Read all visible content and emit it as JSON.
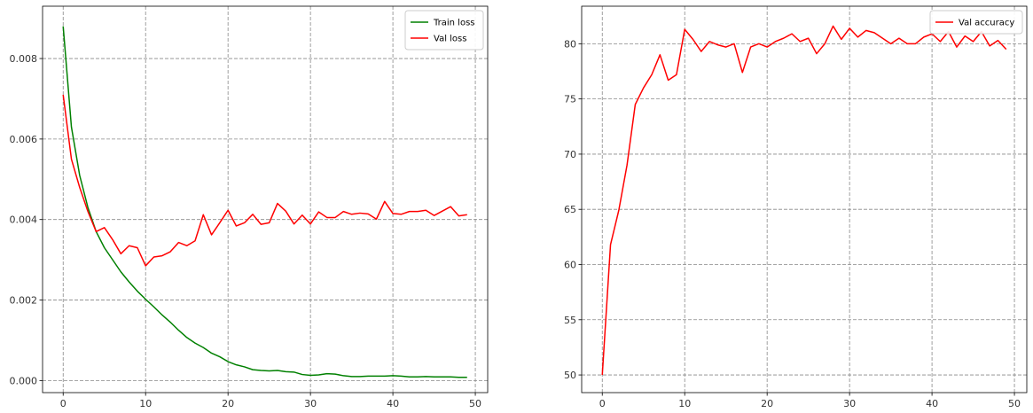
{
  "chart_data": [
    {
      "type": "line",
      "title": "",
      "xlabel": "",
      "ylabel": "",
      "xlim": [
        -2.5,
        51.5
      ],
      "ylim": [
        -0.0003,
        0.0093
      ],
      "xticks": [
        0,
        10,
        20,
        30,
        40,
        50
      ],
      "yticks": [
        0.0,
        0.002,
        0.004,
        0.006,
        0.008
      ],
      "xtick_labels": [
        "0",
        "10",
        "20",
        "30",
        "40",
        "50"
      ],
      "ytick_labels": [
        "0.000",
        "0.002",
        "0.004",
        "0.006",
        "0.008"
      ],
      "grid": true,
      "legend_position": "top-right",
      "series": [
        {
          "name": "Train loss",
          "color": "#008000",
          "x": [
            0,
            1,
            2,
            3,
            4,
            5,
            6,
            7,
            8,
            9,
            10,
            11,
            12,
            13,
            14,
            15,
            16,
            17,
            18,
            19,
            20,
            21,
            22,
            23,
            24,
            25,
            26,
            27,
            28,
            29,
            30,
            31,
            32,
            33,
            34,
            35,
            36,
            37,
            38,
            39,
            40,
            41,
            42,
            43,
            44,
            45,
            46,
            47,
            48,
            49
          ],
          "values": [
            0.0088,
            0.0063,
            0.0051,
            0.0043,
            0.0037,
            0.0033,
            0.003,
            0.0027,
            0.00245,
            0.00222,
            0.00202,
            0.00183,
            0.00163,
            0.00145,
            0.00125,
            0.00107,
            0.00093,
            0.00082,
            0.00068,
            0.00059,
            0.00047,
            0.00039,
            0.00034,
            0.00027,
            0.00025,
            0.00024,
            0.00025,
            0.00022,
            0.00021,
            0.00015,
            0.00013,
            0.00014,
            0.00017,
            0.00016,
            0.00012,
            0.0001,
            0.0001,
            0.00011,
            0.00011,
            0.00011,
            0.00012,
            0.00011,
            9e-05,
            9e-05,
            0.0001,
            9e-05,
            9e-05,
            9e-05,
            8e-05,
            8e-05
          ]
        },
        {
          "name": "Val loss",
          "color": "#ff0000",
          "x": [
            0,
            1,
            2,
            3,
            4,
            5,
            6,
            7,
            8,
            9,
            10,
            11,
            12,
            13,
            14,
            15,
            16,
            17,
            18,
            19,
            20,
            21,
            22,
            23,
            24,
            25,
            26,
            27,
            28,
            29,
            30,
            31,
            32,
            33,
            34,
            35,
            36,
            37,
            38,
            39,
            40,
            41,
            42,
            43,
            44,
            45,
            46,
            47,
            48,
            49
          ],
          "values": [
            0.0071,
            0.0055,
            0.0048,
            0.0042,
            0.0037,
            0.0038,
            0.0035,
            0.00315,
            0.00335,
            0.0033,
            0.00285,
            0.00307,
            0.0031,
            0.0032,
            0.00343,
            0.00335,
            0.00347,
            0.00412,
            0.00362,
            0.00392,
            0.00423,
            0.00384,
            0.00392,
            0.00413,
            0.00388,
            0.00392,
            0.0044,
            0.00421,
            0.00389,
            0.00411,
            0.00389,
            0.00419,
            0.00405,
            0.00405,
            0.0042,
            0.00413,
            0.00416,
            0.00414,
            0.00401,
            0.00445,
            0.00415,
            0.00413,
            0.0042,
            0.0042,
            0.00423,
            0.0041,
            0.00421,
            0.00432,
            0.00409,
            0.00412
          ]
        }
      ]
    },
    {
      "type": "line",
      "title": "",
      "xlabel": "",
      "ylabel": "",
      "xlim": [
        -2.5,
        51.5
      ],
      "ylim": [
        48.4,
        83.4
      ],
      "xticks": [
        0,
        10,
        20,
        30,
        40,
        50
      ],
      "yticks": [
        50,
        55,
        60,
        65,
        70,
        75,
        80
      ],
      "xtick_labels": [
        "0",
        "10",
        "20",
        "30",
        "40",
        "50"
      ],
      "ytick_labels": [
        "50",
        "55",
        "60",
        "65",
        "70",
        "75",
        "80"
      ],
      "grid": true,
      "legend_position": "top-right",
      "series": [
        {
          "name": "Val accuracy",
          "color": "#ff0000",
          "x": [
            0,
            1,
            2,
            3,
            4,
            5,
            6,
            7,
            8,
            9,
            10,
            11,
            12,
            13,
            14,
            15,
            16,
            17,
            18,
            19,
            20,
            21,
            22,
            23,
            24,
            25,
            26,
            27,
            28,
            29,
            30,
            31,
            32,
            33,
            34,
            35,
            36,
            37,
            38,
            39,
            40,
            41,
            42,
            43,
            44,
            45,
            46,
            47,
            48,
            49
          ],
          "values": [
            50.0,
            61.8,
            64.9,
            69.0,
            74.5,
            76.0,
            77.2,
            79.0,
            76.7,
            77.2,
            81.3,
            80.4,
            79.3,
            80.2,
            79.9,
            79.7,
            80.0,
            77.4,
            79.7,
            80.0,
            79.7,
            80.2,
            80.5,
            80.9,
            80.2,
            80.5,
            79.1,
            80.0,
            81.6,
            80.4,
            81.4,
            80.6,
            81.2,
            81.0,
            80.5,
            80.0,
            80.5,
            80.0,
            80.0,
            80.6,
            80.9,
            80.2,
            81.1,
            79.7,
            80.7,
            80.2,
            81.1,
            79.8,
            80.3,
            79.5
          ]
        }
      ]
    }
  ]
}
